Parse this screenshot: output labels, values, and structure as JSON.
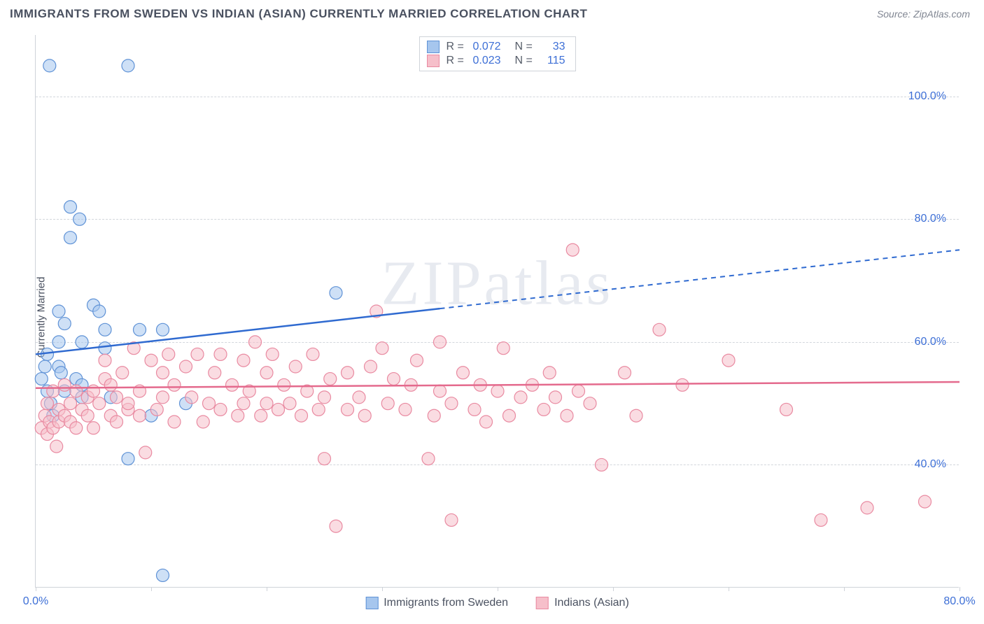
{
  "title": "IMMIGRANTS FROM SWEDEN VS INDIAN (ASIAN) CURRENTLY MARRIED CORRELATION CHART",
  "source": "Source: ZipAtlas.com",
  "watermark": "ZIPatlas",
  "ylabel": "Currently Married",
  "chart": {
    "type": "scatter",
    "xlim": [
      0,
      80
    ],
    "ylim": [
      20,
      110
    ],
    "ytick_values": [
      40,
      60,
      80,
      100
    ],
    "ytick_labels": [
      "40.0%",
      "60.0%",
      "80.0%",
      "100.0%"
    ],
    "xtick_values": [
      0,
      10,
      20,
      30,
      40,
      50,
      60,
      70,
      80
    ],
    "x_start_label": "0.0%",
    "x_end_label": "80.0%",
    "grid_color": "#d2d6dc",
    "background_color": "#ffffff",
    "axis_color": "#cfd3d9",
    "tick_label_color": "#3d6fd6",
    "marker_radius": 9,
    "marker_opacity": 0.55,
    "series": [
      {
        "name": "Immigrants from Sweden",
        "fill": "#a6c6ee",
        "stroke": "#5f92d6",
        "trend_color": "#2f6ad0",
        "trend_solid_end": 35,
        "trend": {
          "x1": 0,
          "y1": 58,
          "x2": 80,
          "y2": 75
        },
        "R": "0.072",
        "N": "33",
        "points": [
          [
            0.5,
            54
          ],
          [
            0.8,
            56
          ],
          [
            1,
            52
          ],
          [
            1,
            58
          ],
          [
            1.2,
            105
          ],
          [
            1.3,
            50
          ],
          [
            1.5,
            48
          ],
          [
            2,
            56
          ],
          [
            2,
            60
          ],
          [
            2,
            65
          ],
          [
            2.2,
            55
          ],
          [
            2.5,
            52
          ],
          [
            2.5,
            63
          ],
          [
            3,
            77
          ],
          [
            3,
            82
          ],
          [
            3.5,
            54
          ],
          [
            3.8,
            80
          ],
          [
            4,
            51
          ],
          [
            4,
            53
          ],
          [
            4,
            60
          ],
          [
            5,
            66
          ],
          [
            5.5,
            65
          ],
          [
            6,
            62
          ],
          [
            6,
            59
          ],
          [
            6.5,
            51
          ],
          [
            8,
            105
          ],
          [
            8,
            41
          ],
          [
            9,
            62
          ],
          [
            10,
            48
          ],
          [
            11,
            62
          ],
          [
            11,
            22
          ],
          [
            13,
            50
          ],
          [
            26,
            68
          ]
        ]
      },
      {
        "name": "Indians (Asian)",
        "fill": "#f6bfca",
        "stroke": "#e98aa1",
        "trend_color": "#e46a8d",
        "trend_solid_end": 80,
        "trend": {
          "x1": 0,
          "y1": 52.5,
          "x2": 80,
          "y2": 53.5
        },
        "R": "0.023",
        "N": "115",
        "points": [
          [
            0.5,
            46
          ],
          [
            0.8,
            48
          ],
          [
            1,
            45
          ],
          [
            1,
            50
          ],
          [
            1.2,
            47
          ],
          [
            1.5,
            46
          ],
          [
            1.5,
            52
          ],
          [
            1.8,
            43
          ],
          [
            2,
            47
          ],
          [
            2,
            49
          ],
          [
            2.5,
            48
          ],
          [
            2.5,
            53
          ],
          [
            3,
            47
          ],
          [
            3,
            50
          ],
          [
            3.5,
            52
          ],
          [
            3.5,
            46
          ],
          [
            4,
            49
          ],
          [
            4.5,
            51
          ],
          [
            4.5,
            48
          ],
          [
            5,
            46
          ],
          [
            5,
            52
          ],
          [
            5.5,
            50
          ],
          [
            6,
            54
          ],
          [
            6,
            57
          ],
          [
            6.5,
            48
          ],
          [
            6.5,
            53
          ],
          [
            7,
            47
          ],
          [
            7,
            51
          ],
          [
            7.5,
            55
          ],
          [
            8,
            49
          ],
          [
            8,
            50
          ],
          [
            8.5,
            59
          ],
          [
            9,
            48
          ],
          [
            9,
            52
          ],
          [
            9.5,
            42
          ],
          [
            10,
            57
          ],
          [
            10.5,
            49
          ],
          [
            11,
            51
          ],
          [
            11,
            55
          ],
          [
            11.5,
            58
          ],
          [
            12,
            47
          ],
          [
            12,
            53
          ],
          [
            13,
            56
          ],
          [
            13.5,
            51
          ],
          [
            14,
            58
          ],
          [
            14.5,
            47
          ],
          [
            15,
            50
          ],
          [
            15.5,
            55
          ],
          [
            16,
            49
          ],
          [
            16,
            58
          ],
          [
            17,
            53
          ],
          [
            17.5,
            48
          ],
          [
            18,
            50
          ],
          [
            18,
            57
          ],
          [
            18.5,
            52
          ],
          [
            19,
            60
          ],
          [
            19.5,
            48
          ],
          [
            20,
            50
          ],
          [
            20,
            55
          ],
          [
            20.5,
            58
          ],
          [
            21,
            49
          ],
          [
            21.5,
            53
          ],
          [
            22,
            50
          ],
          [
            22.5,
            56
          ],
          [
            23,
            48
          ],
          [
            23.5,
            52
          ],
          [
            24,
            58
          ],
          [
            24.5,
            49
          ],
          [
            25,
            41
          ],
          [
            25,
            51
          ],
          [
            25.5,
            54
          ],
          [
            26,
            30
          ],
          [
            27,
            49
          ],
          [
            27,
            55
          ],
          [
            28,
            51
          ],
          [
            28.5,
            48
          ],
          [
            29,
            56
          ],
          [
            29.5,
            65
          ],
          [
            30,
            59
          ],
          [
            30.5,
            50
          ],
          [
            31,
            54
          ],
          [
            32,
            49
          ],
          [
            32.5,
            53
          ],
          [
            33,
            57
          ],
          [
            34,
            41
          ],
          [
            34.5,
            48
          ],
          [
            35,
            52
          ],
          [
            35,
            60
          ],
          [
            36,
            31
          ],
          [
            36,
            50
          ],
          [
            37,
            55
          ],
          [
            38,
            49
          ],
          [
            38.5,
            53
          ],
          [
            39,
            47
          ],
          [
            40,
            52
          ],
          [
            40.5,
            59
          ],
          [
            41,
            48
          ],
          [
            42,
            51
          ],
          [
            43,
            53
          ],
          [
            44,
            49
          ],
          [
            44.5,
            55
          ],
          [
            45,
            51
          ],
          [
            46,
            48
          ],
          [
            46.5,
            75
          ],
          [
            47,
            52
          ],
          [
            48,
            50
          ],
          [
            49,
            40
          ],
          [
            51,
            55
          ],
          [
            52,
            48
          ],
          [
            54,
            62
          ],
          [
            56,
            53
          ],
          [
            60,
            57
          ],
          [
            65,
            49
          ],
          [
            68,
            31
          ],
          [
            72,
            33
          ],
          [
            77,
            34
          ]
        ]
      }
    ]
  },
  "legend_bottom": [
    {
      "label": "Immigrants from Sweden",
      "fill": "#a6c6ee",
      "stroke": "#5f92d6"
    },
    {
      "label": "Indians (Asian)",
      "fill": "#f6bfca",
      "stroke": "#e98aa1"
    }
  ]
}
